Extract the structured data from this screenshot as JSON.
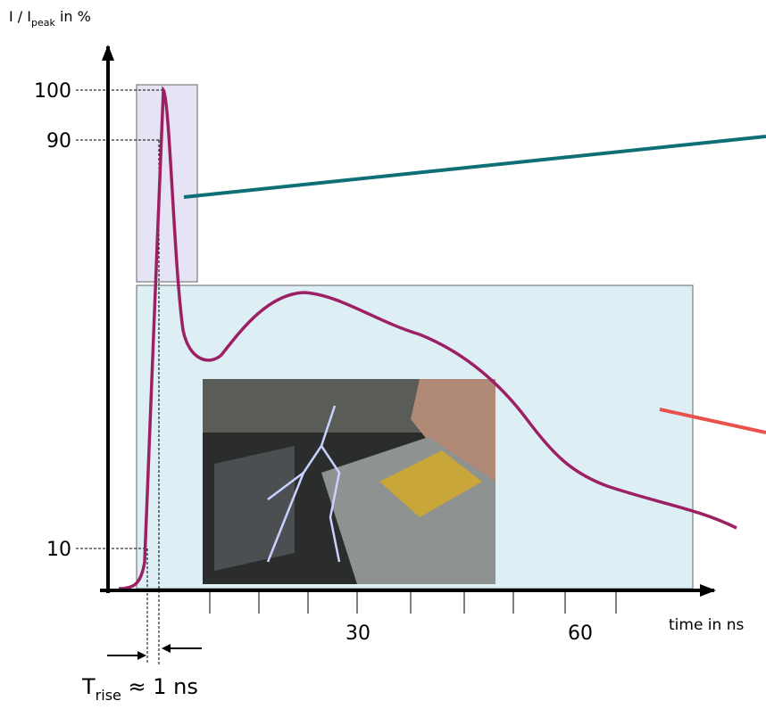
{
  "y_axis_label": {
    "main": "I / I",
    "sub": "peak",
    "unit": " in %"
  },
  "y_ticks": [
    "100",
    "90",
    "10"
  ],
  "x_ticks": [
    "30",
    "60"
  ],
  "x_axis_label": "time in ns",
  "rise_label": {
    "main": "T",
    "sub": "rise",
    "rest": " ≈ 1 ns"
  }
}
